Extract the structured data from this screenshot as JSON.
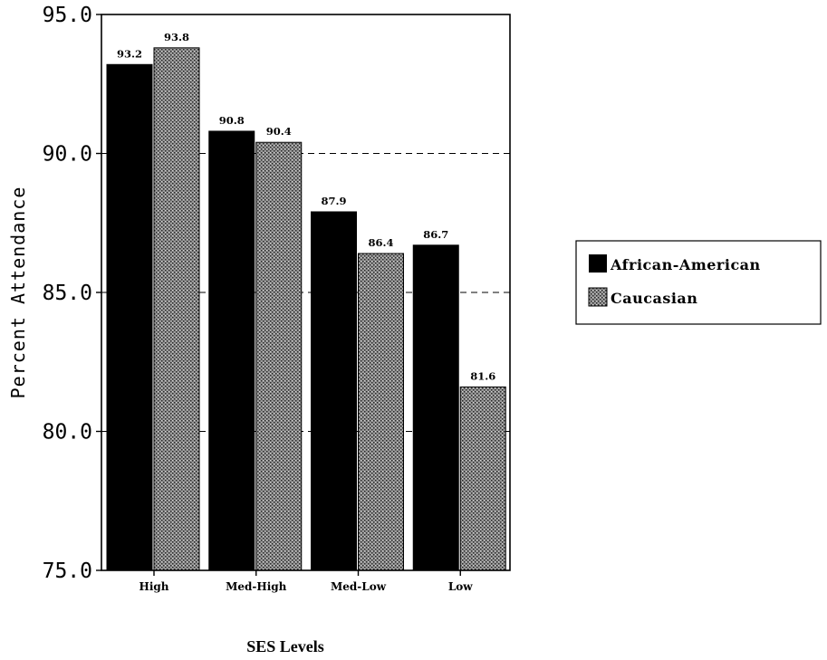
{
  "chart_data": {
    "type": "bar",
    "categories": [
      "High",
      "Med-High",
      "Med-Low",
      "Low"
    ],
    "series": [
      {
        "name": "African-American",
        "values": [
          93.2,
          90.8,
          87.9,
          86.7
        ],
        "labels": [
          "93.2",
          "90.8",
          "87.9",
          "86.7"
        ],
        "color": "#000000",
        "fill": "solid"
      },
      {
        "name": "Caucasian",
        "values": [
          93.8,
          90.4,
          86.4,
          81.6
        ],
        "labels": [
          "93.8",
          "90.4",
          "86.4",
          "81.6"
        ],
        "color": "#8a8a8a",
        "fill": "stipple"
      }
    ],
    "ylabel": "Percent Attendance",
    "xlabel": "SES Levels",
    "ylim": [
      75.0,
      95.0
    ],
    "yticks": [
      75.0,
      80.0,
      85.0,
      90.0,
      95.0
    ],
    "ytick_labels": [
      "75.0",
      "80.0",
      "85.0",
      "90.0",
      "95.0"
    ],
    "grid": "dashed horizontal",
    "legend": {
      "position": "right"
    }
  }
}
